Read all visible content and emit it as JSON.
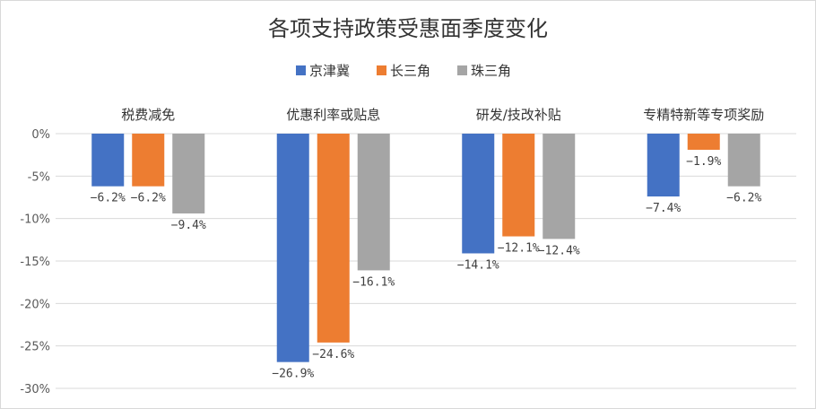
{
  "chart_data": {
    "type": "bar",
    "title": "各项支持政策受惠面季度变化",
    "categories": [
      "税费减免",
      "优惠利率或贴息",
      "研发/技改补贴",
      "专精特新等专项奖励"
    ],
    "series": [
      {
        "name": "京津冀",
        "values": [
          -6.2,
          -26.9,
          -14.1,
          -7.4
        ],
        "labels": [
          "−6.2%",
          "−26.9%",
          "−14.1%",
          "−7.4%"
        ]
      },
      {
        "name": "长三角",
        "values": [
          -6.2,
          -24.6,
          -12.1,
          -1.9
        ],
        "labels": [
          "−6.2%",
          "−24.6%",
          "−12.1%",
          "−1.9%"
        ]
      },
      {
        "name": "珠三角",
        "values": [
          -9.4,
          -16.1,
          -12.4,
          -6.2
        ],
        "labels": [
          "−9.4%",
          "−16.1%",
          "−12.4%",
          "−6.2%"
        ]
      }
    ],
    "colors": [
      "#4472C4",
      "#ED7D31",
      "#A5A5A5"
    ],
    "ylim": [
      -30,
      0
    ],
    "yticks": [
      0,
      -5,
      -10,
      -15,
      -20,
      -25,
      -30
    ],
    "ytick_labels": [
      "0%",
      "-5%",
      "-10%",
      "-15%",
      "-20%",
      "-25%",
      "-30%"
    ],
    "grid": true,
    "legend_position": "top"
  }
}
